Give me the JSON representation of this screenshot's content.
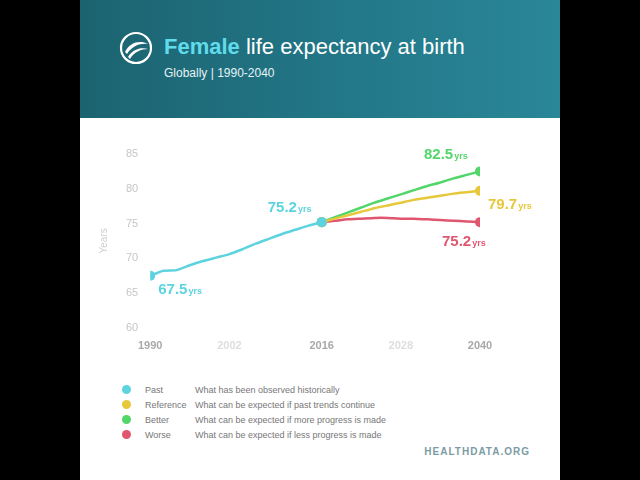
{
  "chart_data": {
    "type": "line",
    "title": "Female life expectancy at birth",
    "subtitle": "Globally | 1990-2040",
    "y_label": "Years",
    "source": "HEALTHDATA.ORG",
    "x": [
      1990,
      1992,
      1994,
      1996,
      1998,
      2000,
      2002,
      2004,
      2006,
      2008,
      2010,
      2012,
      2014,
      2016,
      2018,
      2020,
      2022,
      2024,
      2026,
      2028,
      2030,
      2032,
      2034,
      2036,
      2038,
      2040
    ],
    "series": [
      {
        "name": "Past",
        "description": "What has been observed historically",
        "color": "#5dd3e0",
        "values": [
          67.5,
          68.2,
          68.3,
          69.0,
          69.6,
          70.1,
          70.6,
          71.3,
          72.1,
          72.8,
          73.5,
          74.1,
          74.7,
          75.2,
          null,
          null,
          null,
          null,
          null,
          null,
          null,
          null,
          null,
          null,
          null,
          null
        ]
      },
      {
        "name": "Reference",
        "description": "What can be expected if past trends continue",
        "color": "#e6c83a",
        "values": [
          null,
          null,
          null,
          null,
          null,
          null,
          null,
          null,
          null,
          null,
          null,
          null,
          null,
          75.2,
          75.7,
          76.2,
          76.7,
          77.2,
          77.6,
          78.0,
          78.4,
          78.7,
          79.0,
          79.3,
          79.5,
          79.7
        ]
      },
      {
        "name": "Better",
        "description": "What can be expected if more progress is made",
        "color": "#52d66a",
        "values": [
          null,
          null,
          null,
          null,
          null,
          null,
          null,
          null,
          null,
          null,
          null,
          null,
          null,
          75.2,
          75.9,
          76.6,
          77.3,
          78.0,
          78.6,
          79.2,
          79.8,
          80.4,
          80.9,
          81.5,
          82.0,
          82.5
        ]
      },
      {
        "name": "Worse",
        "description": "What can be expected if less progress is made",
        "color": "#e0566f",
        "values": [
          null,
          null,
          null,
          null,
          null,
          null,
          null,
          null,
          null,
          null,
          null,
          null,
          null,
          75.2,
          75.4,
          75.6,
          75.7,
          75.8,
          75.8,
          75.7,
          75.7,
          75.6,
          75.5,
          75.4,
          75.3,
          75.2
        ]
      }
    ],
    "annotations": [
      {
        "series": "Past",
        "x": 1990,
        "y": 67.5,
        "label": "67.5",
        "unit": "yrs"
      },
      {
        "series": "Past",
        "x": 2016,
        "y": 75.2,
        "label": "75.2",
        "unit": "yrs"
      },
      {
        "series": "Better",
        "x": 2040,
        "y": 82.5,
        "label": "82.5",
        "unit": "yrs"
      },
      {
        "series": "Reference",
        "x": 2040,
        "y": 79.7,
        "label": "79.7",
        "unit": "yrs"
      },
      {
        "series": "Worse",
        "x": 2040,
        "y": 75.2,
        "label": "75.2",
        "unit": "yrs"
      }
    ],
    "xlim": [
      1990,
      2040
    ],
    "xticks": [
      1990,
      2002,
      2016,
      2028,
      2040
    ],
    "ylim": [
      60,
      85
    ],
    "yticks": [
      60,
      65,
      70,
      75,
      80,
      85
    ],
    "grid": false,
    "legend": "bottom"
  }
}
